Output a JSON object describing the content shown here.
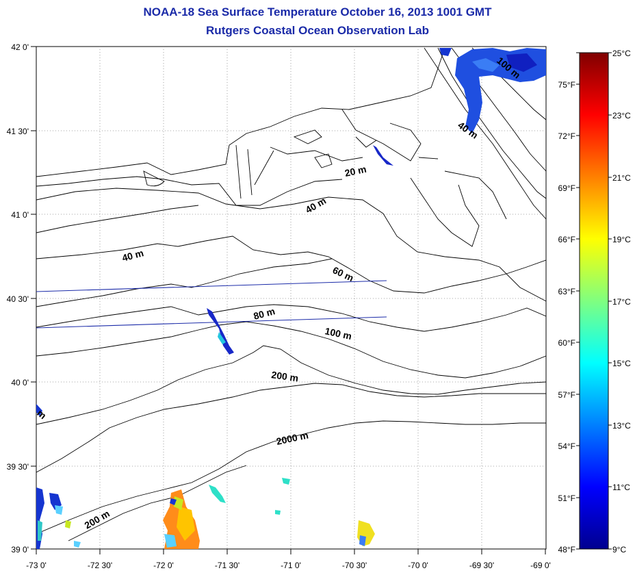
{
  "title": {
    "line1": "NOAA-18 Sea Surface Temperature October 16, 2013 1001 GMT",
    "line2": "Rutgers Coastal Ocean Observation Lab"
  },
  "map": {
    "lat_labels": [
      "42 0'",
      "41 30'",
      "41 0'",
      "40 30'",
      "40 0'",
      "39 30'",
      "39 0'"
    ],
    "lon_labels": [
      "-73 0'",
      "-72 30'",
      "-72 0'",
      "-71 30'",
      "-71 0'",
      "-70 30'",
      "-70 0'",
      "-69 30'",
      "-69 0'"
    ],
    "lat_range": [
      39.0,
      42.0
    ],
    "lon_range": [
      -73.0,
      -69.0
    ],
    "contour_labels": [
      "20 m",
      "40 m",
      "40 m",
      "40 m",
      "60 m",
      "80 m",
      "100 m",
      "200 m",
      "200 m",
      "2000 m",
      "100 m",
      "m"
    ]
  },
  "colorbar": {
    "celsius_labels": [
      "25°C",
      "23°C",
      "21°C",
      "19°C",
      "17°C",
      "15°C",
      "13°C",
      "11°C",
      "9°C"
    ],
    "fahrenheit_labels": [
      "75°F",
      "72°F",
      "69°F",
      "66°F",
      "63°F",
      "60°F",
      "57°F",
      "54°F",
      "51°F",
      "48°F"
    ],
    "range_c": [
      9,
      25
    ]
  }
}
